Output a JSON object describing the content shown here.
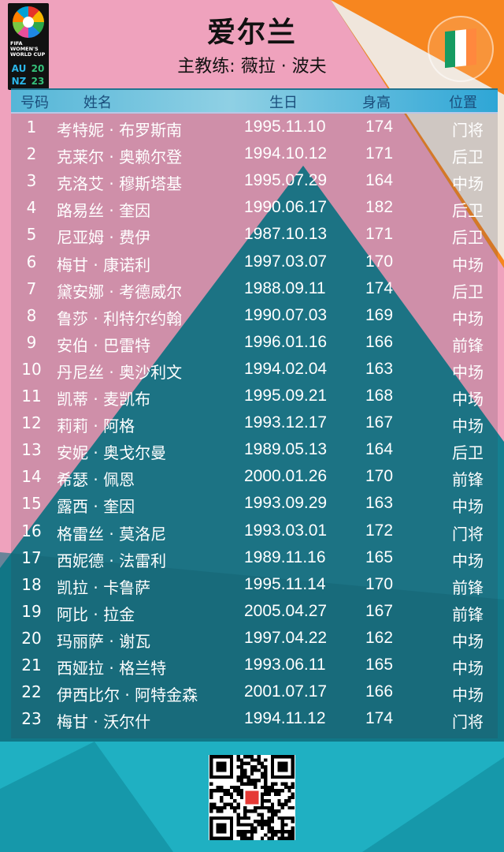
{
  "header": {
    "title": "爱尔兰",
    "coach": "主教练: 薇拉 · 波夫"
  },
  "logo": {
    "text": "FIFA WOMEN'S WORLD CUP",
    "codes": [
      "AU",
      "20",
      "NZ",
      "23"
    ]
  },
  "flag": {
    "name": "ireland-flag",
    "colors": [
      "#169b62",
      "#ffffff",
      "#ff883e"
    ]
  },
  "colors": {
    "pink": "#f1a6c0",
    "orange": "#f7861f",
    "teal": "#16879a",
    "header_bar": "#55b6d8"
  },
  "table": {
    "columns": [
      "号码",
      "姓名",
      "生日",
      "身高",
      "位置"
    ],
    "rows": [
      [
        "1",
        "考特妮 · 布罗斯南",
        "1995.11.10",
        "174",
        "门将"
      ],
      [
        "2",
        "克莱尔 · 奥赖尔登",
        "1994.10.12",
        "171",
        "后卫"
      ],
      [
        "3",
        "克洛艾 · 穆斯塔基",
        "1995.07.29",
        "164",
        "中场"
      ],
      [
        "4",
        "路易丝 · 奎因",
        "1990.06.17",
        "182",
        "后卫"
      ],
      [
        "5",
        "尼亚姆 · 费伊",
        "1987.10.13",
        "171",
        "后卫"
      ],
      [
        "6",
        "梅甘 · 康诺利",
        "1997.03.07",
        "170",
        "中场"
      ],
      [
        "7",
        "黛安娜 · 考德威尔",
        "1988.09.11",
        "174",
        "后卫"
      ],
      [
        "8",
        "鲁莎 · 利特尔约翰",
        "1990.07.03",
        "169",
        "中场"
      ],
      [
        "9",
        "安伯 · 巴雷特",
        "1996.01.16",
        "166",
        "前锋"
      ],
      [
        "10",
        "丹尼丝 · 奥沙利文",
        "1994.02.04",
        "163",
        "中场"
      ],
      [
        "11",
        "凯蒂 · 麦凯布",
        "1995.09.21",
        "168",
        "中场"
      ],
      [
        "12",
        "莉莉 · 阿格",
        "1993.12.17",
        "167",
        "中场"
      ],
      [
        "13",
        "安妮 · 奥戈尔曼",
        "1989.05.13",
        "164",
        "后卫"
      ],
      [
        "14",
        "希瑟 · 佩恩",
        "2000.01.26",
        "170",
        "前锋"
      ],
      [
        "15",
        "露西 · 奎因",
        "1993.09.29",
        "163",
        "中场"
      ],
      [
        "16",
        "格雷丝 · 莫洛尼",
        "1993.03.01",
        "172",
        "门将"
      ],
      [
        "17",
        "西妮德 · 法雷利",
        "1989.11.16",
        "165",
        "中场"
      ],
      [
        "18",
        "凯拉 · 卡鲁萨",
        "1995.11.14",
        "170",
        "前锋"
      ],
      [
        "19",
        "阿比 · 拉金",
        "2005.04.27",
        "167",
        "前锋"
      ],
      [
        "20",
        "玛丽萨 · 谢瓦",
        "1997.04.22",
        "162",
        "中场"
      ],
      [
        "21",
        "西娅拉 · 格兰特",
        "1993.06.11",
        "165",
        "中场"
      ],
      [
        "22",
        "伊西比尔 · 阿特金森",
        "2001.07.17",
        "166",
        "中场"
      ],
      [
        "23",
        "梅甘 · 沃尔什",
        "1994.11.12",
        "174",
        "门将"
      ]
    ]
  }
}
